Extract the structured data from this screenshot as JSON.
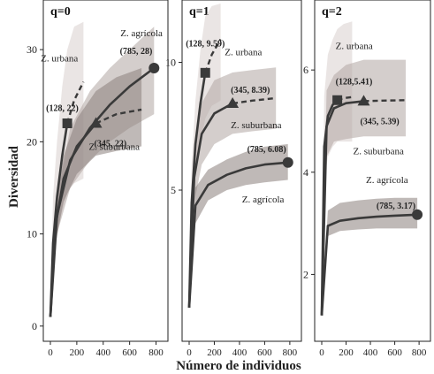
{
  "chart_data": {
    "type": "line",
    "ylabel": "Diversidad",
    "xlabel": "Número de individuos",
    "colors": {
      "line": "#3a3a3a",
      "band_dark": "#8a807c",
      "band_mid": "#b1a6a2",
      "band_light": "#d8d0cd",
      "axis": "#222222"
    },
    "panels": [
      {
        "title": "q=0",
        "xlim": [
          0,
          850
        ],
        "ylim": [
          -0.5,
          35
        ],
        "xticks": [
          "0",
          "200",
          "400",
          "600",
          "800"
        ],
        "yticks": [
          "0",
          "10",
          "20",
          "30"
        ],
        "series": [
          {
            "name": "Z. urbana",
            "marker": "square",
            "x": [
              0,
              20,
              50,
              90,
              128,
              180,
              250
            ],
            "y": [
              1,
              9,
              14,
              18.5,
              22,
              24.5,
              26.5
            ],
            "ci_low": [
              1,
              7,
              10,
              12.5,
              14.5,
              15.5,
              16
            ],
            "ci_high": [
              1,
              14,
              20,
              26,
              30,
              32.5,
              33
            ],
            "label_point": "(128, 22)",
            "label_name": "Z. urbana"
          },
          {
            "name": "Z. agrícola",
            "marker": "circle",
            "x": [
              0,
              50,
              150,
              300,
              450,
              600,
              785
            ],
            "y": [
              1,
              12,
              18,
              21.5,
              24,
              26,
              28
            ],
            "ci_low": [
              1,
              10,
              15,
              18,
              20,
              21.5,
              23
            ],
            "ci_high": [
              1,
              14,
              21.5,
              25.5,
              28,
              30,
              32.5
            ],
            "label_point": "(785, 28)",
            "label_name": "Z. agrícola"
          },
          {
            "name": "Z. suburbana",
            "marker": "triangle",
            "x": [
              0,
              40,
              100,
              200,
              345,
              500,
              690
            ],
            "y": [
              1,
              11,
              16,
              19.5,
              22,
              23,
              23.5
            ],
            "ci_low": [
              1,
              9,
              13.5,
              16.5,
              18.5,
              19,
              19.5
            ],
            "ci_high": [
              1,
              13,
              18.5,
              22.5,
              25.5,
              27,
              28
            ],
            "label_point": "(345, 22)",
            "label_name": "Z. suburbana"
          }
        ]
      },
      {
        "title": "q=1",
        "xlim": [
          0,
          850
        ],
        "ylim": [
          -0.5,
          12.3
        ],
        "xticks": [
          "0",
          "200",
          "400",
          "600",
          "800"
        ],
        "yticks": [
          "5",
          "10"
        ],
        "series": [
          {
            "name": "Z. urbana",
            "marker": "square",
            "x": [
              0,
              20,
              50,
              90,
              128,
              180,
              250
            ],
            "y": [
              0.4,
              4.5,
              6.8,
              8.4,
              9.59,
              10.3,
              10.9
            ],
            "ci_low": [
              0.4,
              3.5,
              5.5,
              6.8,
              7.8,
              8.3,
              8.5
            ],
            "ci_high": [
              0.4,
              6,
              8.5,
              10.5,
              11.8,
              12.2,
              12.3
            ],
            "label_point": "(128, 9.59)",
            "label_name": "Z. urbana"
          },
          {
            "name": "Z. suburbana",
            "marker": "triangle",
            "x": [
              0,
              40,
              100,
              200,
              345,
              500,
              690
            ],
            "y": [
              0.4,
              5.5,
              7.2,
              8,
              8.39,
              8.5,
              8.6
            ],
            "ci_low": [
              0.4,
              4.5,
              6,
              6.8,
              7.2,
              7.3,
              7.4
            ],
            "ci_high": [
              0.4,
              6.5,
              8.4,
              9.3,
              9.6,
              9.7,
              9.8
            ],
            "label_point": "(345, 8.39)",
            "label_name": "Z. suburbana"
          },
          {
            "name": "Z. agrícola",
            "marker": "circle",
            "x": [
              0,
              50,
              150,
              300,
              450,
              600,
              785
            ],
            "y": [
              0.4,
              4.4,
              5.2,
              5.6,
              5.85,
              6,
              6.08
            ],
            "ci_low": [
              0.4,
              3.7,
              4.6,
              5,
              5.2,
              5.3,
              5.4
            ],
            "ci_high": [
              0.4,
              5.1,
              5.8,
              6.2,
              6.5,
              6.7,
              6.8
            ],
            "label_point": "(785, 6.08)",
            "label_name": "Z. agrícola"
          }
        ]
      },
      {
        "title": "q=2",
        "xlim": [
          0,
          850
        ],
        "ylim": [
          0.9,
          7.3
        ],
        "xticks": [
          "0",
          "200",
          "400",
          "600",
          "800"
        ],
        "yticks": [
          "2",
          "4",
          "6"
        ],
        "series": [
          {
            "name": "Z. urbana",
            "marker": "square",
            "x": [
              0,
              20,
              50,
              90,
              128,
              180,
              250
            ],
            "y": [
              1.2,
              4.5,
              5.1,
              5.32,
              5.41,
              5.45,
              5.47
            ],
            "ci_low": [
              1.2,
              3.8,
              4.3,
              4.5,
              4.6,
              4.6,
              4.6
            ],
            "ci_high": [
              1.2,
              5.5,
              6.3,
              6.6,
              6.8,
              6.9,
              6.95
            ],
            "label_point": "(128,5.41)",
            "label_name": "Z. urbana"
          },
          {
            "name": "Z. suburbana",
            "marker": "triangle",
            "x": [
              0,
              40,
              100,
              200,
              345,
              500,
              690
            ],
            "y": [
              1.2,
              4.9,
              5.25,
              5.35,
              5.39,
              5.4,
              5.41
            ],
            "ci_low": [
              1.2,
              4.3,
              4.6,
              4.65,
              4.7,
              4.7,
              4.7
            ],
            "ci_high": [
              1.2,
              5.6,
              5.9,
              6.1,
              6.2,
              6.2,
              6.2
            ],
            "label_point": "(345, 5.39)",
            "label_name": "Z. suburbana"
          },
          {
            "name": "Z. agrícola",
            "marker": "circle",
            "x": [
              0,
              50,
              150,
              300,
              450,
              600,
              785
            ],
            "y": [
              1.2,
              2.95,
              3.05,
              3.1,
              3.13,
              3.15,
              3.17
            ],
            "ci_low": [
              1.2,
              2.75,
              2.85,
              2.88,
              2.9,
              2.9,
              2.9
            ],
            "ci_high": [
              1.2,
              3.25,
              3.4,
              3.45,
              3.48,
              3.5,
              3.5
            ],
            "label_point": "(785, 3.17)",
            "label_name": "Z. agrícola"
          }
        ]
      }
    ]
  }
}
